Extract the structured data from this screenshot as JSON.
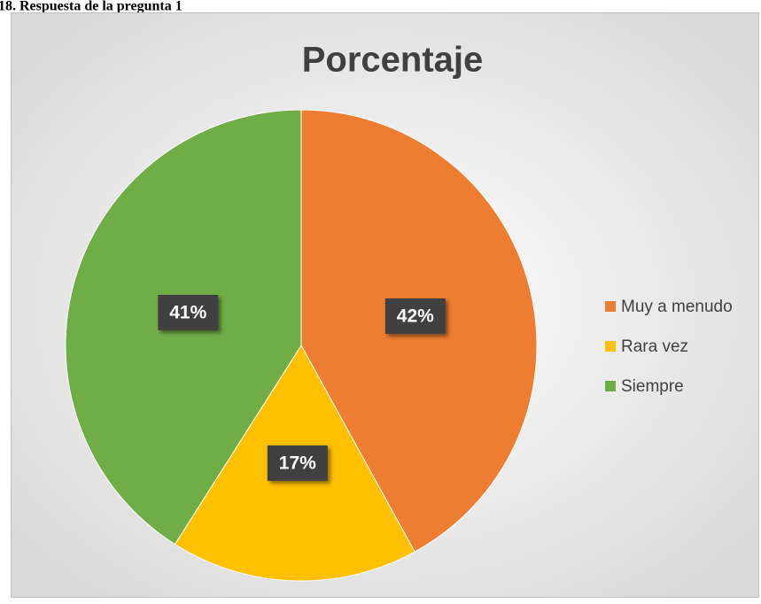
{
  "caption": "18. Respuesta de la pregunta 1",
  "chart_data": {
    "type": "pie",
    "title": "Porcentaje",
    "categories": [
      "Muy a menudo",
      "Rara vez",
      "Siempre"
    ],
    "values": [
      42,
      17,
      41
    ],
    "value_labels": [
      "42%",
      "17%",
      "41%"
    ],
    "colors": [
      "#ed7d31",
      "#ffc000",
      "#70ad47"
    ],
    "legend": "right"
  }
}
